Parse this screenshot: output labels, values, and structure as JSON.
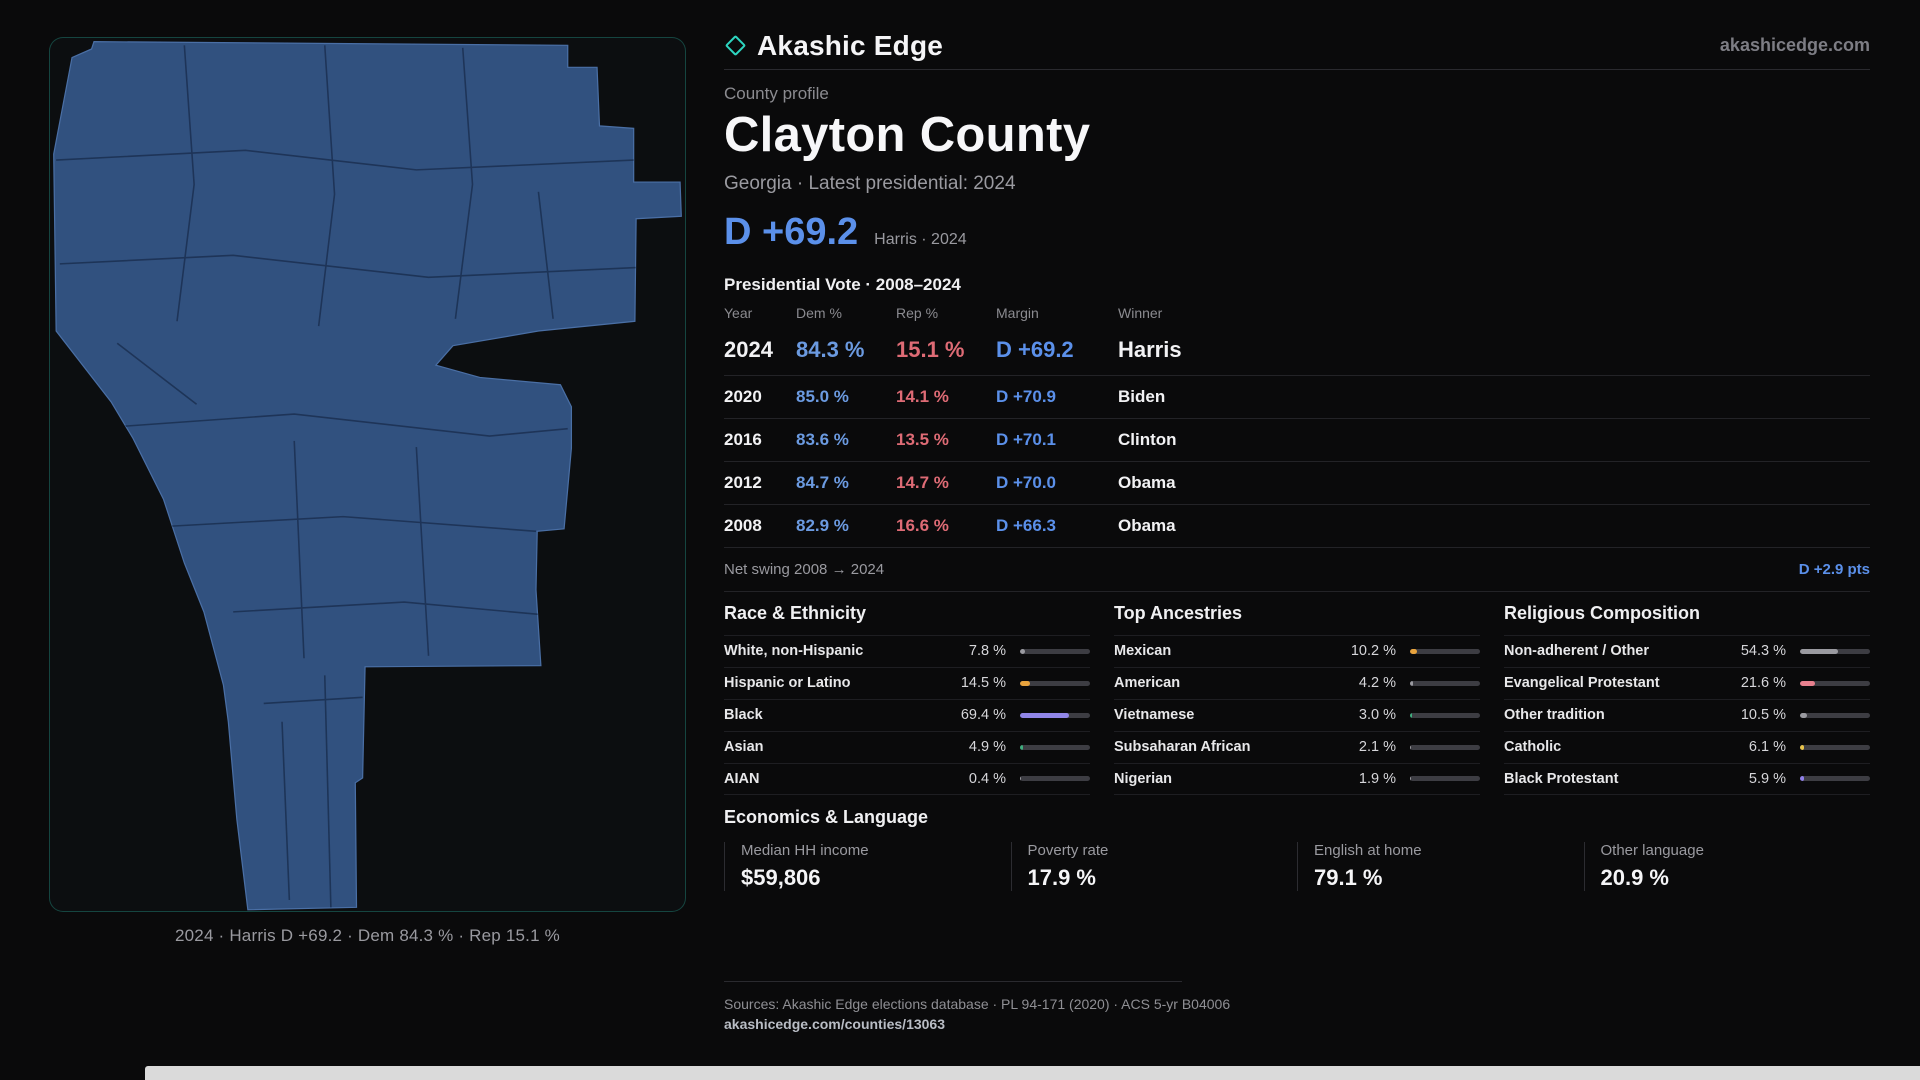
{
  "brand": {
    "name": "Akashic Edge",
    "domain": "akashicedge.com"
  },
  "colors": {
    "accent_teal": "#2dd4bf",
    "dem_blue": "#5b90ea",
    "rep_red": "#de6b75",
    "map_fill": "#31517f"
  },
  "profile": {
    "eyebrow": "County profile",
    "title": "Clayton County",
    "subtitle": "Georgia · Latest presidential: 2024",
    "headline_margin": "D +69.2",
    "headline_note": "Harris · 2024"
  },
  "map": {
    "caption": "2024 · Harris D +69.2 · Dem 84.3 % · Rep 15.1 %"
  },
  "elections": {
    "section_title": "Presidential Vote · 2008–2024",
    "columns": [
      "Year",
      "Dem %",
      "Rep %",
      "Margin",
      "Winner"
    ],
    "rows": [
      {
        "year": "2024",
        "dem": "84.3 %",
        "rep": "15.1 %",
        "margin": "D +69.2",
        "winner": "Harris"
      },
      {
        "year": "2020",
        "dem": "85.0 %",
        "rep": "14.1 %",
        "margin": "D +70.9",
        "winner": "Biden"
      },
      {
        "year": "2016",
        "dem": "83.6 %",
        "rep": "13.5 %",
        "margin": "D +70.1",
        "winner": "Clinton"
      },
      {
        "year": "2012",
        "dem": "84.7 %",
        "rep": "14.7 %",
        "margin": "D +70.0",
        "winner": "Obama"
      },
      {
        "year": "2008",
        "dem": "82.9 %",
        "rep": "16.6 %",
        "margin": "D +66.3",
        "winner": "Obama"
      }
    ],
    "net_swing_label": "Net swing 2008 → 2024",
    "net_swing_value": "D +2.9 pts"
  },
  "demographics": [
    {
      "title": "Race & Ethnicity",
      "rows": [
        {
          "label": "White, non-Hispanic",
          "value": "7.8 %",
          "pct": 7.8,
          "color": "#9a9aa0"
        },
        {
          "label": "Hispanic or Latino",
          "value": "14.5 %",
          "pct": 14.5,
          "color": "#e8a33d"
        },
        {
          "label": "Black",
          "value": "69.4 %",
          "pct": 69.4,
          "color": "#9186e8"
        },
        {
          "label": "Asian",
          "value": "4.9 %",
          "pct": 4.9,
          "color": "#3fae7e"
        },
        {
          "label": "AIAN",
          "value": "0.4 %",
          "pct": 0.4,
          "color": "#9a9aa0"
        }
      ]
    },
    {
      "title": "Top Ancestries",
      "rows": [
        {
          "label": "Mexican",
          "value": "10.2 %",
          "pct": 10.2,
          "color": "#e8a33d"
        },
        {
          "label": "American",
          "value": "4.2 %",
          "pct": 4.2,
          "color": "#9a9aa0"
        },
        {
          "label": "Vietnamese",
          "value": "3.0 %",
          "pct": 3.0,
          "color": "#3fae7e"
        },
        {
          "label": "Subsaharan African",
          "value": "2.1 %",
          "pct": 2.1,
          "color": "#9a9aa0"
        },
        {
          "label": "Nigerian",
          "value": "1.9 %",
          "pct": 1.9,
          "color": "#9a9aa0"
        }
      ]
    },
    {
      "title": "Religious Composition",
      "rows": [
        {
          "label": "Non-adherent / Other",
          "value": "54.3 %",
          "pct": 54.3,
          "color": "#9a9aa0"
        },
        {
          "label": "Evangelical Protestant",
          "value": "21.6 %",
          "pct": 21.6,
          "color": "#e8808e"
        },
        {
          "label": "Other tradition",
          "value": "10.5 %",
          "pct": 10.5,
          "color": "#9a9aa0"
        },
        {
          "label": "Catholic",
          "value": "6.1 %",
          "pct": 6.1,
          "color": "#e8c44c"
        },
        {
          "label": "Black Protestant",
          "value": "5.9 %",
          "pct": 5.9,
          "color": "#8f7fe8"
        }
      ]
    }
  ],
  "economics": {
    "section_title": "Economics & Language",
    "stats": [
      {
        "label": "Median HH income",
        "value": "$59,806"
      },
      {
        "label": "Poverty rate",
        "value": "17.9 %"
      },
      {
        "label": "English at home",
        "value": "79.1 %"
      },
      {
        "label": "Other language",
        "value": "20.9 %"
      }
    ]
  },
  "footer": {
    "sources": "Sources: Akashic Edge elections database · PL 94-171 (2020) · ACS 5-yr B04006",
    "permalink": "akashicedge.com/counties/13063"
  }
}
